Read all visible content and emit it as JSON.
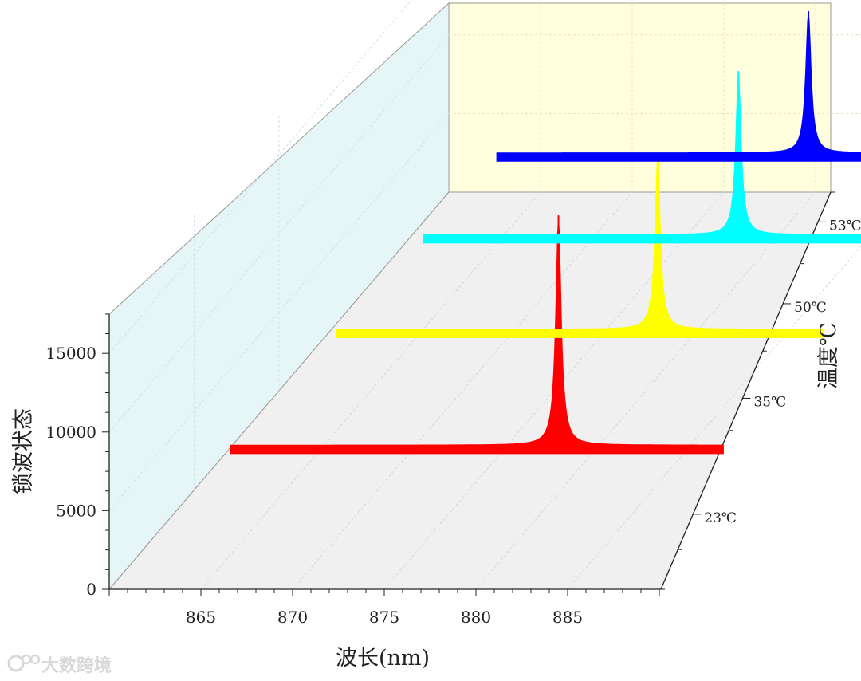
{
  "chart_data": {
    "type": "line",
    "subtype": "3d-waterfall",
    "title": "",
    "xlabel": "波长(nm)",
    "ylabel": "锁波状态",
    "zlabel": "温度℃",
    "xlim": [
      860,
      890
    ],
    "ylim": [
      0,
      17500
    ],
    "xticks": [
      "865",
      "870",
      "875",
      "880",
      "885"
    ],
    "yticks": [
      "0",
      "5000",
      "10000",
      "15000"
    ],
    "grid": true,
    "legend": "none",
    "series": [
      {
        "name": "23℃",
        "color": "#ff0000",
        "x_range": [
          863.1,
          890
        ],
        "baseline": 4400,
        "peak_x": 881.0,
        "peak_y": 19000
      },
      {
        "name": "35℃",
        "color": "#ffff00",
        "x_range": [
          863.5,
          890
        ],
        "baseline": 4400,
        "peak_x": 881.0,
        "peak_y": 15400
      },
      {
        "name": "50℃",
        "color": "#00ffff",
        "x_range": [
          863.8,
          890
        ],
        "baseline": 4400,
        "peak_x": 881.0,
        "peak_y": 14800
      },
      {
        "name": "53℃",
        "color": "#0000ff",
        "x_range": [
          864.0,
          890
        ],
        "baseline": 4400,
        "peak_x": 881.0,
        "peak_y": 13400
      }
    ]
  },
  "watermark": {
    "text": "大数跨境",
    "icon": "watermark-logo-icon"
  }
}
